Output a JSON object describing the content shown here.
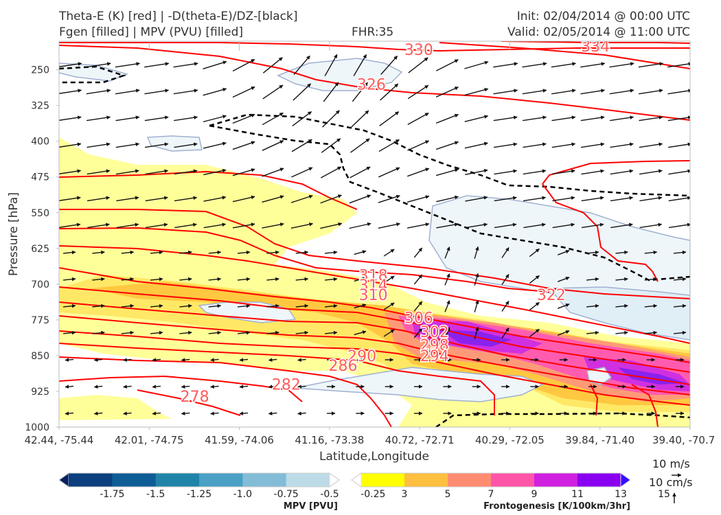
{
  "header": {
    "title_line1": "Theta-E (K) [red] | -D(theta-E)/DZ-[black]",
    "title_line2": "Fgen [filled] | MPV (PVU) [filled]",
    "fhr": "FHR:35",
    "init": "Init: 02/04/2014 @ 00:00 UTC",
    "valid": "Valid: 02/05/2014 @ 11:00 UTC"
  },
  "chart_data": {
    "type": "cross-section",
    "xlabel": "Latitude,Longitude",
    "ylabel": "Pressure [hPa]",
    "x_ticks": [
      "42.44, -75.44",
      "42.01, -74.75",
      "41.59, -74.06",
      "41.16, -73.38",
      "40.72, -72.71",
      "40.29, -72.05",
      "39.84, -71.40",
      "39.40, -70.7"
    ],
    "y_ticks": [
      250,
      325,
      400,
      475,
      550,
      625,
      700,
      775,
      850,
      925,
      1000
    ],
    "ylim": [
      1000,
      190
    ],
    "colors": {
      "theta_e": "#ff0000",
      "theta_e_label": "#ff5a5a",
      "neg_dthetae_dz": "#000000",
      "mpv_fill": "#e9f3f8",
      "mpv_outline": "#a0b0d0"
    },
    "theta_e_contour_labels": [
      {
        "value": 330,
        "x": 0.57,
        "p": 207
      },
      {
        "value": 334,
        "x": 0.85,
        "p": 200
      },
      {
        "value": 326,
        "x": 0.495,
        "p": 280
      },
      {
        "value": 322,
        "x": 0.78,
        "p": 722
      },
      {
        "value": 318,
        "x": 0.498,
        "p": 681
      },
      {
        "value": 314,
        "x": 0.498,
        "p": 702
      },
      {
        "value": 310,
        "x": 0.498,
        "p": 722
      },
      {
        "value": 306,
        "x": 0.57,
        "p": 770
      },
      {
        "value": 302,
        "x": 0.595,
        "p": 800
      },
      {
        "value": 298,
        "x": 0.595,
        "p": 827
      },
      {
        "value": 294,
        "x": 0.595,
        "p": 850
      },
      {
        "value": 290,
        "x": 0.48,
        "p": 850
      },
      {
        "value": 286,
        "x": 0.45,
        "p": 870
      },
      {
        "value": 282,
        "x": 0.36,
        "p": 910
      },
      {
        "value": 278,
        "x": 0.215,
        "p": 935
      }
    ],
    "mpv_colorbar": {
      "label": "MPV [PVU]",
      "ticks": [
        "-1.75",
        "-1.5",
        "-1.25",
        "-1.0",
        "-0.75",
        "-0.5",
        "-0.25"
      ],
      "colors": [
        "#08205e",
        "#0b3f7e",
        "#0f5d96",
        "#1f84a8",
        "#4aa0c5",
        "#82bcd6",
        "#bcdbe6",
        "#ffffff"
      ]
    },
    "fgen_colorbar": {
      "label": "Frontogenesis [K/100km/3hr]",
      "ticks": [
        "3",
        "5",
        "7",
        "9",
        "11",
        "13",
        "15"
      ],
      "colors": [
        "#ffffff",
        "#ffff00",
        "#ffbf40",
        "#ff8c70",
        "#ff55a8",
        "#d020e0",
        "#8a00f0",
        "#3010ff"
      ]
    },
    "wind_reference": {
      "u_label": "10 m/s",
      "w_label": "10 cm/s"
    }
  }
}
